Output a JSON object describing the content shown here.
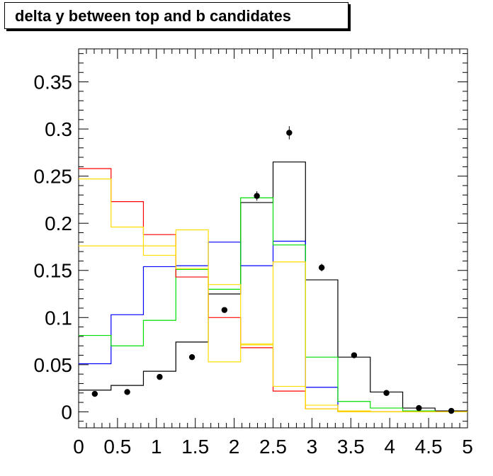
{
  "chart_data": {
    "type": "line",
    "title": "delta y between top and b candidates",
    "xlabel": "",
    "ylabel": "",
    "xlim": [
      0,
      5
    ],
    "ylim": [
      -0.017,
      0.385
    ],
    "grid": false,
    "x_ticks": [
      "0",
      "0.5",
      "1",
      "1.5",
      "2",
      "2.5",
      "3",
      "3.5",
      "4",
      "4.5",
      "5"
    ],
    "y_ticks": [
      "0",
      "0.05",
      "0.1",
      "0.15",
      "0.2",
      "0.25",
      "0.3",
      "0.35"
    ],
    "bin_edges": [
      0,
      0.417,
      0.833,
      1.25,
      1.667,
      2.083,
      2.5,
      2.917,
      3.333,
      3.75,
      4.167,
      4.583,
      5
    ],
    "series": [
      {
        "color": "#000000",
        "values": [
          0.023,
          0.028,
          0.043,
          0.074,
          0.125,
          0.222,
          0.265,
          0.14,
          0.058,
          0.021,
          0.004,
          0.001
        ]
      },
      {
        "color": "#0000ff",
        "values": [
          0.051,
          0.103,
          0.154,
          0.155,
          0.18,
          0.155,
          0.181,
          0.026,
          0.001,
          0.0,
          0.0,
          0.0
        ]
      },
      {
        "color": "#00dd00",
        "values": [
          0.081,
          0.07,
          0.097,
          0.151,
          0.13,
          0.227,
          0.177,
          0.058,
          0.011,
          0.004,
          0.001,
          0.0
        ]
      },
      {
        "color": "#ff0000",
        "values": [
          0.258,
          0.223,
          0.188,
          0.143,
          0.1,
          0.068,
          0.022,
          0.003,
          0.0,
          0.0,
          0.0,
          0.0
        ]
      },
      {
        "color": "#ffdd00",
        "values": [
          0.247,
          0.196,
          0.166,
          0.193,
          0.053,
          0.072,
          0.159,
          0.007,
          0.0,
          0.0,
          0.0,
          0.0
        ]
      },
      {
        "color": "#ffdd00",
        "values": [
          0.176,
          0.176,
          0.176,
          0.152,
          0.135,
          0.071,
          0.027,
          0.003,
          0.001,
          0.0,
          0.0,
          0.0
        ]
      }
    ],
    "points": {
      "color": "#000000",
      "x": [
        0.208,
        0.625,
        1.042,
        1.458,
        1.875,
        2.292,
        2.708,
        3.125,
        3.542,
        3.958,
        4.375,
        4.792
      ],
      "y": [
        0.019,
        0.021,
        0.037,
        0.058,
        0.108,
        0.229,
        0.296,
        0.153,
        0.06,
        0.02,
        0.004,
        0.001
      ],
      "err": [
        0.002,
        0.002,
        0.002,
        0.003,
        0.003,
        0.005,
        0.007,
        0.004,
        0.002,
        0.001,
        0.001,
        0.0005
      ]
    }
  }
}
